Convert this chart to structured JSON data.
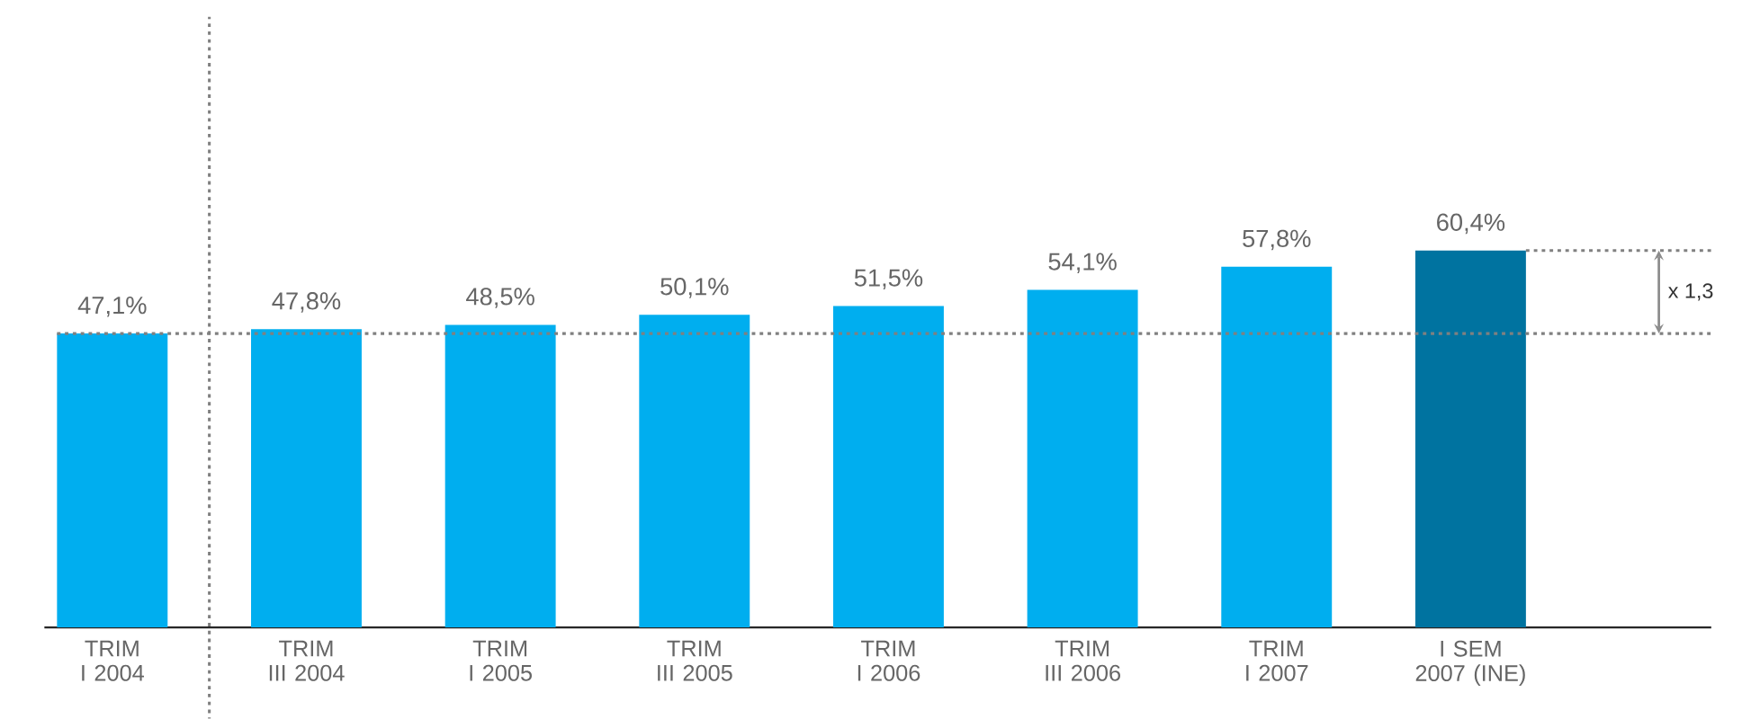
{
  "chart_data": {
    "type": "bar",
    "categories": [
      "TRIM I 2004",
      "TRIM III 2004",
      "TRIM I 2005",
      "TRIM III 2005",
      "TRIM I 2006",
      "TRIM III 2006",
      "TRIM I 2007",
      "I SEM 2007 (INE)"
    ],
    "values": [
      47.1,
      47.8,
      48.5,
      50.1,
      51.5,
      54.1,
      57.8,
      60.4
    ],
    "colors": [
      "#00aeef",
      "#00aeef",
      "#00aeef",
      "#00aeef",
      "#00aeef",
      "#00aeef",
      "#00aeef",
      "#0073a0"
    ],
    "value_labels": [
      "47,1%",
      "47,8%",
      "48,5%",
      "50,1%",
      "51,5%",
      "54,1%",
      "57,8%",
      "60,4%"
    ],
    "ref_lines": [
      {
        "axis": "y",
        "value": 47.1,
        "line_style": "dotted",
        "color": "#808080"
      },
      {
        "axis": "y",
        "value": 60.4,
        "line_style": "dotted",
        "color": "#808080"
      }
    ],
    "annotations": [
      "x 1,3"
    ]
  }
}
